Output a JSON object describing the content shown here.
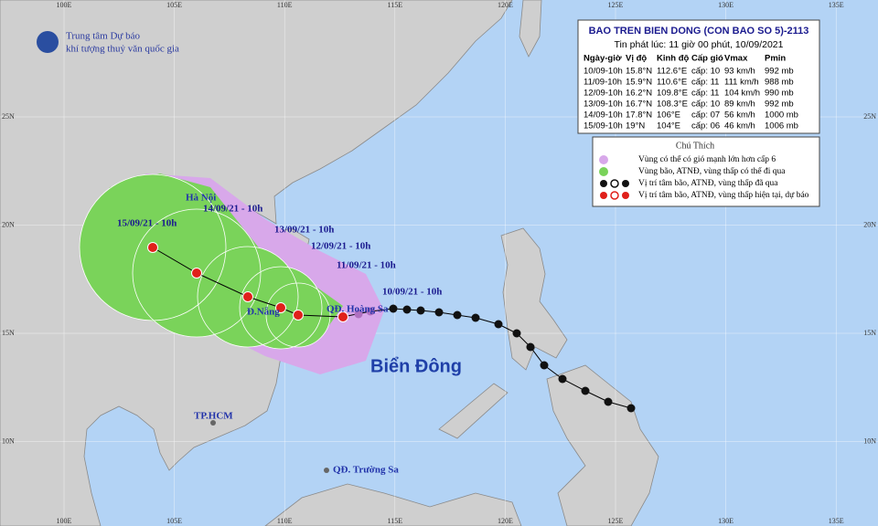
{
  "agency": [
    "Trung tâm Dự báo",
    "khí tượng thuỷ văn quốc gia"
  ],
  "bulletin": {
    "title": "BAO TREN BIEN DONG (CON BAO SO 5)-2113",
    "issued": "Tin phát lúc: 11 giờ 00 phút, 10/09/2021",
    "columns": [
      "Ngày-giờ",
      "Vị độ",
      "Kinh độ",
      "Cấp gió",
      "Vmax",
      "Pmin"
    ],
    "rows": [
      [
        "10/09-10h",
        "15.8°N",
        "112.6°E",
        "cấp: 10",
        "93 km/h",
        "992 mb"
      ],
      [
        "11/09-10h",
        "15.9°N",
        "110.6°E",
        "cấp: 11",
        "111 km/h",
        "988 mb"
      ],
      [
        "12/09-10h",
        "16.2°N",
        "109.8°E",
        "cấp: 11",
        "104 km/h",
        "990 mb"
      ],
      [
        "13/09-10h",
        "16.7°N",
        "108.3°E",
        "cấp: 10",
        "89 km/h",
        "992 mb"
      ],
      [
        "14/09-10h",
        "17.8°N",
        "106°E",
        "cấp: 07",
        "56 km/h",
        "1000 mb"
      ],
      [
        "15/09-10h",
        "19°N",
        "104°E",
        "cấp: 06",
        "46 km/h",
        "1006 mb"
      ]
    ]
  },
  "legend": {
    "title": "Chú Thích",
    "items": [
      "Vùng có thể có gió mạnh lớn hơn cấp 6",
      "Vùng bão, ATNĐ, vùng thấp có thể đi qua",
      "Vị trí tâm bão, ATNĐ, vùng thấp đã qua",
      "Vị trí tâm bão, ATNĐ, vùng thấp hiện tại, dự báo"
    ]
  },
  "map": {
    "longitude_labels": [
      "100E",
      "105E",
      "110E",
      "115E",
      "120E",
      "125E",
      "130E",
      "135E"
    ],
    "latitude_labels": [
      "25N",
      "20N",
      "15N",
      "10N"
    ],
    "track_labels": [
      "10/09/21 - 10h",
      "11/09/21 - 10h",
      "12/09/21 - 10h",
      "13/09/21 - 10h",
      "14/09/21 - 10h",
      "15/09/21 - 10h"
    ],
    "places": [
      "Hà Nội",
      "Đ.Nẵng",
      "QĐ. Hoàng Sa",
      "TP.HCM",
      "QĐ. Trường Sa"
    ],
    "sea_name": "Biển Đông"
  }
}
